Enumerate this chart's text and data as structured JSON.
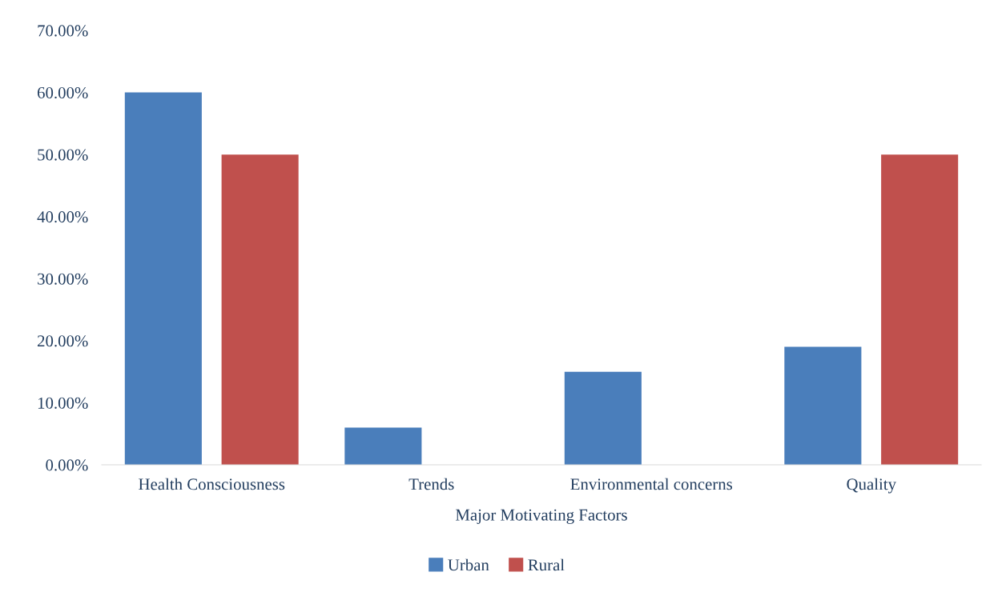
{
  "chart_data": {
    "type": "bar",
    "categories": [
      "Health Consciousness",
      "Trends",
      "Environmental concerns",
      "Quality"
    ],
    "xlabel": "Major Motivating Factors",
    "series": [
      {
        "name": "Urban",
        "color": "#4a7ebb",
        "values": [
          60,
          6,
          15,
          19
        ]
      },
      {
        "name": "Rural",
        "color": "#c0504d",
        "values": [
          50,
          0,
          0,
          50
        ]
      }
    ],
    "ylim": [
      0,
      70
    ],
    "yticks": [
      {
        "value": 0,
        "label": "0.00%"
      },
      {
        "value": 10,
        "label": "10.00%"
      },
      {
        "value": 20,
        "label": "20.00%"
      },
      {
        "value": 30,
        "label": "30.00%"
      },
      {
        "value": 40,
        "label": "40.00%"
      },
      {
        "value": 50,
        "label": "50.00%"
      },
      {
        "value": 60,
        "label": "60.00%"
      },
      {
        "value": 70,
        "label": "70.00%"
      }
    ],
    "grid": false,
    "legend": "bottom"
  }
}
